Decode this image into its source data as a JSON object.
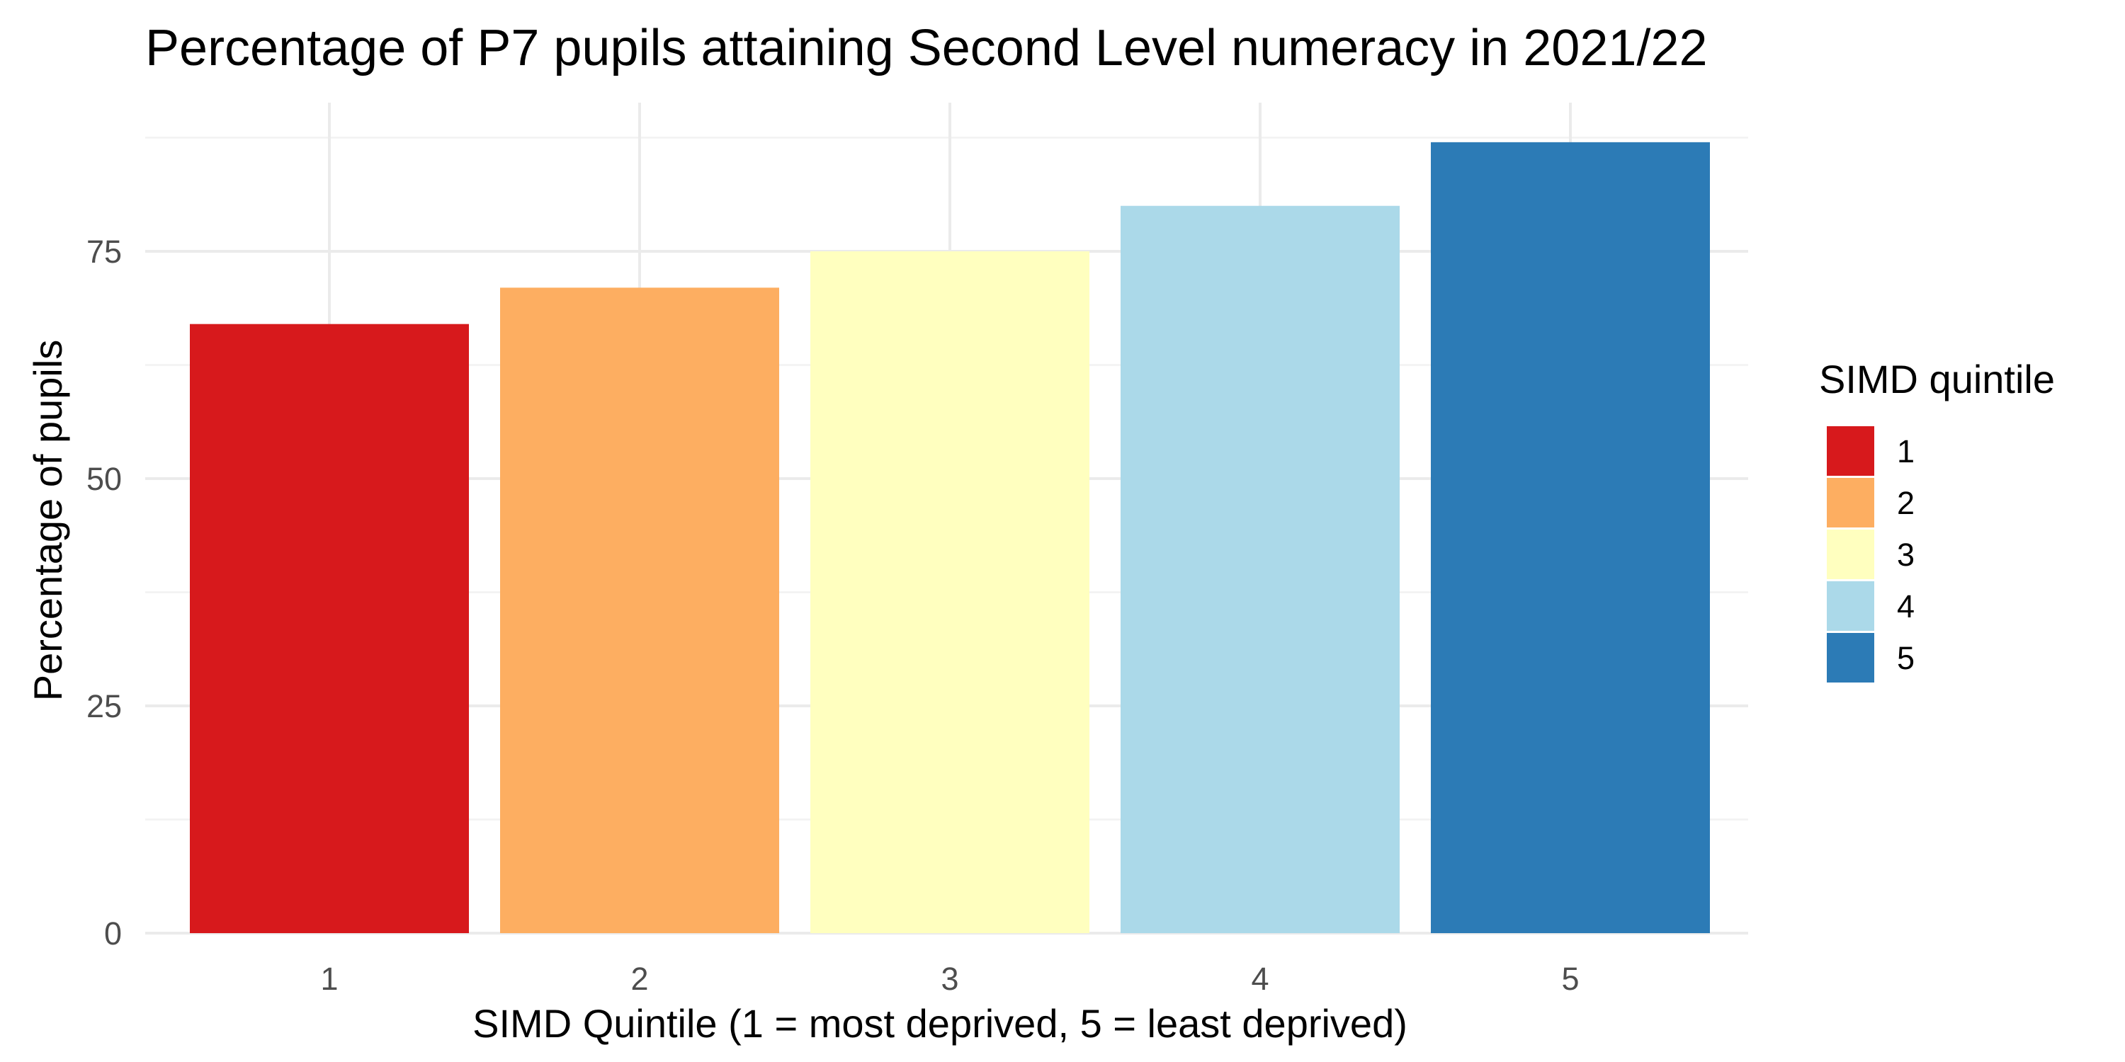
{
  "chart_data": {
    "type": "bar",
    "title": "Percentage of P7 pupils attaining Second Level numeracy in 2021/22",
    "xlabel": "SIMD Quintile (1 = most deprived, 5 = least deprived)",
    "ylabel": "Percentage of pupils",
    "categories": [
      "1",
      "2",
      "3",
      "4",
      "5"
    ],
    "values": [
      67,
      71,
      75,
      80,
      87
    ],
    "colors": [
      "#d7191c",
      "#fdae61",
      "#ffffbf",
      "#abd9e9",
      "#2c7bb6"
    ],
    "ylim": [
      0,
      91.35
    ],
    "yticks": [
      0,
      25,
      50,
      75
    ],
    "ytick_labels": [
      "0",
      "25",
      "50",
      "75"
    ],
    "grid": true,
    "legend": {
      "title": "SIMD quintile",
      "placement": "right",
      "entries": [
        "1",
        "2",
        "3",
        "4",
        "5"
      ]
    }
  }
}
